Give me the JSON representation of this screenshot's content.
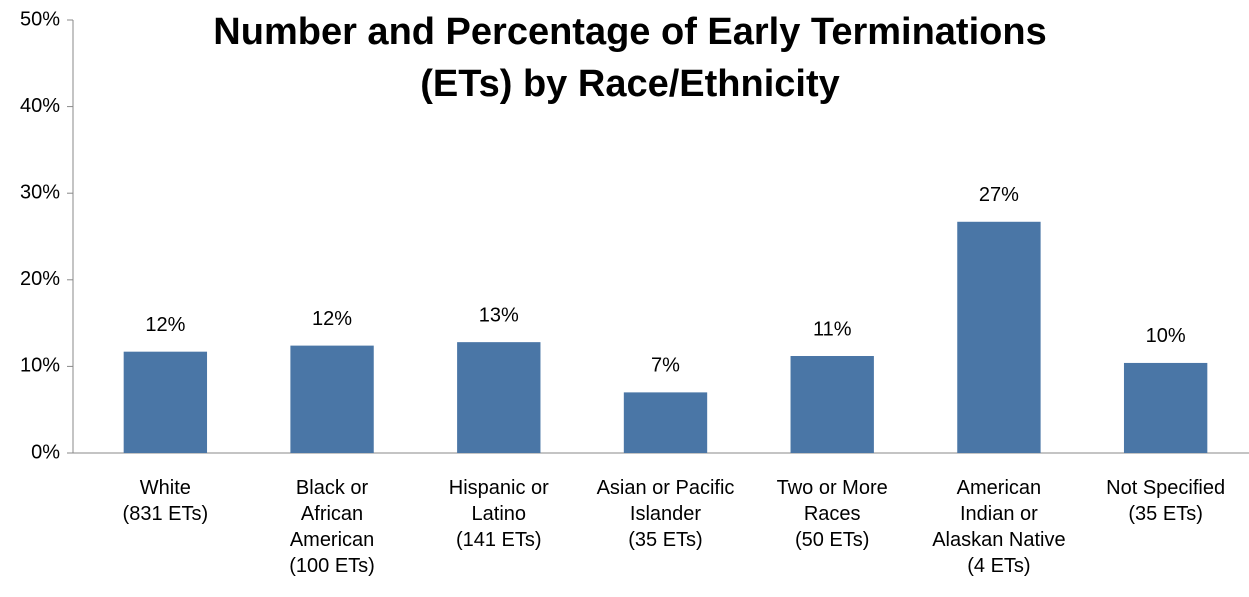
{
  "chart_data": {
    "type": "bar",
    "title": "Number and Percentage of Early Terminations\n(ETs) by Race/Ethnicity",
    "categories": [
      "White\n(831 ETs)",
      "Black or\nAfrican\nAmerican\n(100 ETs)",
      "Hispanic or\nLatino\n(141 ETs)",
      "Asian or Pacific\nIslander\n(35 ETs)",
      "Two or More\nRaces\n(50 ETs)",
      "American\nIndian or\nAlaskan Native\n(4 ETs)",
      "Not Specified\n(35 ETs)"
    ],
    "values": [
      11.7,
      12.4,
      12.8,
      7.0,
      11.2,
      26.7,
      10.4
    ],
    "value_labels": [
      "12%",
      "12%",
      "13%",
      "7%",
      "11%",
      "27%",
      "10%"
    ],
    "color": "#4a76a6",
    "ylim": [
      0,
      50
    ],
    "yticks": [
      {
        "value": 0,
        "label": "0%"
      },
      {
        "value": 10,
        "label": "10%"
      },
      {
        "value": 20,
        "label": "20%"
      },
      {
        "value": 30,
        "label": "30%"
      },
      {
        "value": 40,
        "label": "40%"
      },
      {
        "value": 50,
        "label": "50%"
      }
    ],
    "grid": false
  }
}
